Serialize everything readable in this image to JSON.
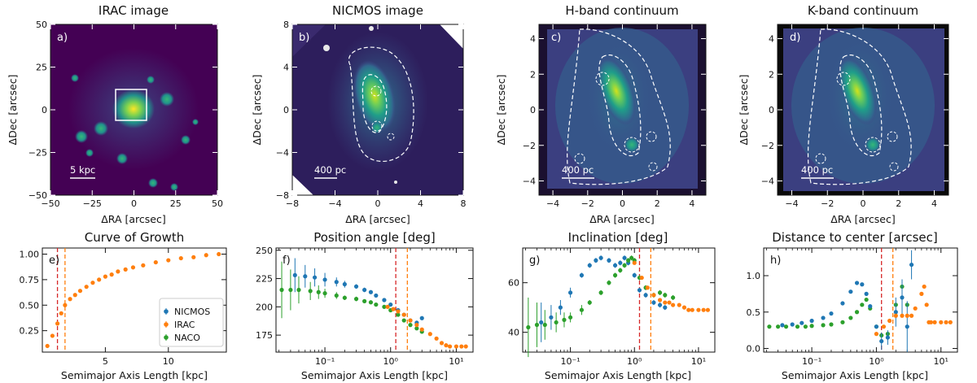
{
  "colors": {
    "nicmos": "#1f77b4",
    "irac": "#ff7f0e",
    "naco": "#2ca02c",
    "red_line": "#d62728",
    "img_bg": "#440154",
    "img_black": "#000000"
  },
  "top_panels": [
    {
      "title": "IRAC image",
      "label": "a)",
      "xlabel": "ΔRA [arcsec]",
      "ylabel": "ΔDec [arcsec]",
      "xlim": [
        -50,
        50
      ],
      "ylim": [
        -50,
        50
      ],
      "xticks": [
        -50,
        -25,
        0,
        25,
        50
      ],
      "yticks": [
        -50,
        -25,
        0,
        25,
        50
      ],
      "xticklabels": [
        "−50",
        "−25",
        "0",
        "25",
        "50"
      ],
      "yticklabels": [
        "−50",
        "−25",
        "0",
        "25",
        "50"
      ],
      "scalebar": "5 kpc",
      "box": [
        -8,
        8
      ]
    },
    {
      "title": "NICMOS image",
      "label": "b)",
      "xlabel": "ΔRA [arcsec]",
      "ylabel": "ΔDec [arcsec]",
      "xlim": [
        -8,
        8
      ],
      "ylim": [
        -8,
        8
      ],
      "xticks": [
        -8,
        -4,
        0,
        4,
        8
      ],
      "yticks": [
        -8,
        -4,
        0,
        4,
        8
      ],
      "xticklabels": [
        "−8",
        "−4",
        "0",
        "4",
        "8"
      ],
      "yticklabels": [
        "−8",
        "−4",
        "0",
        "4",
        "8"
      ],
      "scalebar": "400 pc"
    },
    {
      "title": "H-band continuum",
      "label": "c)",
      "xlabel": "ΔRA [arcsec]",
      "ylabel": "ΔDec [arcsec]",
      "xlim": [
        -4.8,
        4.8
      ],
      "ylim": [
        -4.8,
        4.8
      ],
      "xticks": [
        -4,
        -2,
        0,
        2,
        4
      ],
      "yticks": [
        -4,
        -2,
        0,
        2,
        4
      ],
      "xticklabels": [
        "−4",
        "−2",
        "0",
        "2",
        "4"
      ],
      "yticklabels": [
        "−4",
        "−2",
        "0",
        "2",
        "4"
      ],
      "scalebar": "400 pc"
    },
    {
      "title": "K-band continuum",
      "label": "d)",
      "xlabel": "ΔRA [arcsec]",
      "ylabel": "ΔDec [arcsec]",
      "xlim": [
        -4.8,
        4.8
      ],
      "ylim": [
        -4.8,
        4.8
      ],
      "xticks": [
        -4,
        -2,
        0,
        2,
        4
      ],
      "yticks": [
        -4,
        -2,
        0,
        2,
        4
      ],
      "xticklabels": [
        "−4",
        "−2",
        "0",
        "2",
        "4"
      ],
      "yticklabels": [
        "−4",
        "−2",
        "0",
        "2",
        "4"
      ],
      "scalebar": "400 pc"
    }
  ],
  "chart_data": [
    {
      "type": "scatter",
      "scale": "linear",
      "title": "Curve of Growth",
      "label": "e)",
      "xlabel": "Semimajor Axis Length [kpc]",
      "ylabel": "",
      "xlim": [
        0,
        14.6
      ],
      "ylim": [
        0.04,
        1.06
      ],
      "xticks": [
        5,
        10
      ],
      "xticklabels": [
        "5",
        "10"
      ],
      "yticks": [
        0.25,
        0.5,
        0.75,
        1.0
      ],
      "yticklabels": [
        "0.25",
        "0.50",
        "0.75",
        "1.00"
      ],
      "vlines": [
        {
          "x": 1.2,
          "color": "red"
        },
        {
          "x": 1.8,
          "color": "orange"
        }
      ],
      "legend": {
        "position": "lower-right",
        "entries": [
          "NICMOS",
          "IRAC",
          "NACO"
        ]
      },
      "series": [
        {
          "name": "IRAC",
          "color": "irac",
          "x": [
            0.4,
            0.8,
            1.2,
            1.5,
            1.8,
            2.2,
            2.6,
            3.0,
            3.5,
            4.0,
            4.5,
            5.0,
            5.5,
            6.0,
            6.6,
            7.2,
            8.0,
            9.0,
            10.0,
            11.0,
            12.0,
            13.0,
            14.0
          ],
          "y": [
            0.1,
            0.2,
            0.32,
            0.42,
            0.5,
            0.56,
            0.6,
            0.64,
            0.68,
            0.72,
            0.75,
            0.78,
            0.8,
            0.83,
            0.85,
            0.87,
            0.89,
            0.92,
            0.94,
            0.96,
            0.97,
            0.99,
            1.0
          ]
        }
      ]
    },
    {
      "type": "scatter",
      "scale": "log",
      "title": "Position angle [deg]",
      "label": "f)",
      "xlabel": "Semimajor Axis Length [kpc]",
      "ylabel": "",
      "xlim": [
        0.018,
        18
      ],
      "ylim": [
        160,
        252
      ],
      "xticks": [
        0.1,
        1,
        10
      ],
      "xticklabels": [
        "10⁻¹",
        "10⁰",
        "10¹"
      ],
      "yticks": [
        175,
        200,
        225,
        250
      ],
      "yticklabels": [
        "175",
        "200",
        "225",
        "250"
      ],
      "vlines": [
        {
          "x": 1.2,
          "color": "red"
        },
        {
          "x": 1.8,
          "color": "orange"
        }
      ],
      "series": [
        {
          "name": "NICMOS",
          "color": "nicmos",
          "x": [
            0.035,
            0.05,
            0.07,
            0.1,
            0.15,
            0.2,
            0.3,
            0.4,
            0.5,
            0.6,
            0.8,
            1.0,
            1.3,
            1.6,
            2.0,
            2.5,
            3.0
          ],
          "y": [
            228,
            227,
            226,
            224,
            222,
            220,
            218,
            215,
            213,
            210,
            206,
            202,
            197,
            193,
            188,
            186,
            190
          ],
          "err": [
            15,
            10,
            8,
            6,
            4,
            3,
            2,
            2,
            1,
            1,
            1,
            1,
            1,
            1,
            1,
            1,
            1
          ]
        },
        {
          "name": "NACO",
          "color": "naco",
          "x": [
            0.022,
            0.03,
            0.04,
            0.06,
            0.08,
            0.1,
            0.15,
            0.2,
            0.3,
            0.4,
            0.5,
            0.6,
            0.8,
            1.0,
            1.3,
            1.6,
            2.0,
            2.5,
            3.0
          ],
          "y": [
            215,
            215,
            215,
            214,
            213,
            212,
            210,
            208,
            207,
            205,
            204,
            202,
            200,
            197,
            193,
            188,
            184,
            181,
            178
          ],
          "err": [
            25,
            18,
            12,
            8,
            6,
            4,
            3,
            2,
            2,
            1,
            1,
            1,
            1,
            1,
            1,
            1,
            1,
            1,
            1
          ]
        },
        {
          "name": "IRAC",
          "color": "irac",
          "x": [
            0.9,
            1.1,
            1.3,
            1.6,
            2.0,
            2.5,
            3.0,
            4.0,
            5.0,
            6.0,
            7.0,
            8.0,
            10.0,
            12.0,
            14.0
          ],
          "y": [
            200,
            198,
            196,
            193,
            188,
            184,
            180,
            176,
            172,
            168,
            166,
            165,
            165,
            165,
            165
          ]
        }
      ]
    },
    {
      "type": "scatter",
      "scale": "log",
      "title": "Inclination [deg]",
      "label": "g)",
      "xlabel": "Semimajor Axis Length [kpc]",
      "ylabel": "",
      "xlim": [
        0.018,
        18
      ],
      "ylim": [
        32,
        74
      ],
      "xticks": [
        0.1,
        1,
        10
      ],
      "xticklabels": [
        "10⁻¹",
        "10⁰",
        "10¹"
      ],
      "yticks": [
        40,
        60
      ],
      "yticklabels": [
        "40",
        "60"
      ],
      "vlines": [
        {
          "x": 1.2,
          "color": "red"
        },
        {
          "x": 1.8,
          "color": "orange"
        }
      ],
      "series": [
        {
          "name": "NICMOS",
          "color": "nicmos",
          "x": [
            0.035,
            0.05,
            0.07,
            0.1,
            0.15,
            0.2,
            0.25,
            0.3,
            0.4,
            0.5,
            0.6,
            0.7,
            0.8,
            1.0,
            1.2,
            1.5,
            2.0,
            2.5,
            3.0
          ],
          "y": [
            44,
            46,
            50,
            56,
            63,
            67,
            69,
            70,
            69,
            67,
            68,
            70,
            68,
            63,
            57,
            55,
            52,
            51,
            50
          ],
          "err": [
            8,
            5,
            3,
            2,
            1,
            1,
            1,
            1,
            1,
            1,
            1,
            1,
            1,
            1,
            1,
            1,
            1,
            1,
            1
          ]
        },
        {
          "name": "NACO",
          "color": "naco",
          "x": [
            0.022,
            0.03,
            0.04,
            0.06,
            0.08,
            0.1,
            0.15,
            0.2,
            0.3,
            0.4,
            0.5,
            0.6,
            0.7,
            0.8,
            0.9,
            1.0,
            1.2,
            1.5,
            2.0,
            2.5,
            3.0,
            4.0
          ],
          "y": [
            42,
            43,
            43,
            44,
            45,
            46,
            49,
            52,
            56,
            60,
            63,
            65,
            67,
            69,
            70,
            69,
            62,
            58,
            55,
            56,
            55,
            54
          ],
          "err": [
            12,
            9,
            6,
            4,
            3,
            2,
            2,
            1,
            1,
            1,
            1,
            1,
            1,
            1,
            1,
            1,
            1,
            1,
            1,
            1,
            1,
            1
          ]
        },
        {
          "name": "IRAC",
          "color": "irac",
          "x": [
            1.0,
            1.3,
            1.6,
            2.0,
            2.5,
            3.0,
            3.5,
            4.0,
            5.0,
            6.0,
            7.0,
            8.0,
            10.0,
            12.0,
            14.0
          ],
          "y": [
            68,
            62,
            58,
            55,
            53,
            52,
            52,
            51,
            51,
            50,
            49,
            49,
            49,
            49,
            49
          ]
        }
      ]
    },
    {
      "type": "scatter",
      "scale": "log",
      "title": "Distance to center [arcsec]",
      "label": "h)",
      "xlabel": "Semimajor Axis Length [kpc]",
      "ylabel": "",
      "xlim": [
        0.018,
        18
      ],
      "ylim": [
        -0.05,
        1.38
      ],
      "xticks": [
        0.1,
        1,
        10
      ],
      "xticklabels": [
        "10⁻¹",
        "10⁰",
        "10¹"
      ],
      "yticks": [
        0.0,
        0.5,
        1.0
      ],
      "yticklabels": [
        "0.0",
        "0.5",
        "1.0"
      ],
      "vlines": [
        {
          "x": 1.2,
          "color": "red"
        },
        {
          "x": 1.8,
          "color": "orange"
        }
      ],
      "series": [
        {
          "name": "NACO",
          "color": "naco",
          "x": [
            0.022,
            0.03,
            0.04,
            0.06,
            0.08,
            0.1,
            0.15,
            0.2,
            0.3,
            0.4,
            0.5,
            0.6,
            0.7,
            0.8,
            1.0,
            1.2,
            1.5,
            2.0,
            2.5,
            3.0
          ],
          "y": [
            0.3,
            0.3,
            0.3,
            0.3,
            0.3,
            0.31,
            0.32,
            0.33,
            0.36,
            0.42,
            0.5,
            0.6,
            0.67,
            0.55,
            0.3,
            0.18,
            0.2,
            0.6,
            0.85,
            0.6
          ]
        },
        {
          "name": "NICMOS",
          "color": "nicmos",
          "x": [
            0.035,
            0.05,
            0.07,
            0.1,
            0.15,
            0.2,
            0.3,
            0.4,
            0.5,
            0.6,
            0.7,
            0.8,
            1.0,
            1.2,
            1.5,
            2.0,
            2.5,
            3.0,
            3.5
          ],
          "y": [
            0.32,
            0.33,
            0.35,
            0.38,
            0.42,
            0.48,
            0.62,
            0.78,
            0.9,
            0.88,
            0.75,
            0.58,
            0.3,
            0.1,
            0.15,
            0.5,
            0.7,
            0.3,
            1.15
          ],
          "err": [
            0,
            0,
            0,
            0,
            0,
            0,
            0,
            0,
            0,
            0,
            0,
            0,
            0,
            0.12,
            0.1,
            0.2,
            0.25,
            0.35,
            0.2
          ]
        },
        {
          "name": "IRAC",
          "color": "irac",
          "x": [
            1.0,
            1.3,
            1.6,
            2.0,
            2.5,
            3.0,
            3.5,
            4.0,
            5.0,
            5.5,
            6.0,
            6.5,
            7.0,
            8.0,
            10.0,
            12.0,
            14.0
          ],
          "y": [
            0.2,
            0.3,
            0.38,
            0.45,
            0.45,
            0.45,
            0.45,
            0.55,
            0.75,
            0.85,
            0.6,
            0.36,
            0.36,
            0.36,
            0.36,
            0.36,
            0.36
          ]
        }
      ]
    }
  ]
}
